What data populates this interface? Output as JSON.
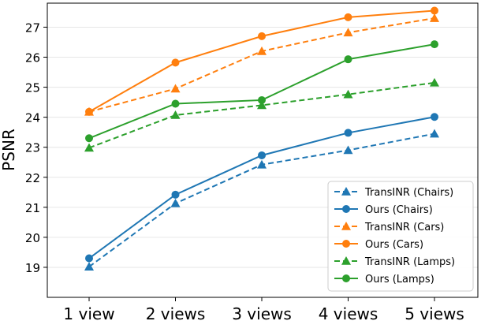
{
  "chart_data": {
    "type": "line",
    "ylabel": "PSNR",
    "xlabel": "",
    "categories": [
      "1 view",
      "2 views",
      "3 views",
      "4 views",
      "5 views"
    ],
    "ylim": [
      18.0,
      27.8
    ],
    "yticks": [
      19,
      20,
      21,
      22,
      23,
      24,
      25,
      26,
      27
    ],
    "grid": "horizontal",
    "legend": "bottom-right",
    "series": [
      {
        "name": "TransINR (Chairs)",
        "color": "#1f77b4",
        "dashed": true,
        "marker": "triangle",
        "values": [
          19.02,
          21.13,
          22.42,
          22.9,
          23.45
        ]
      },
      {
        "name": "Ours (Chairs)",
        "color": "#1f77b4",
        "dashed": false,
        "marker": "circle",
        "values": [
          19.3,
          21.42,
          22.73,
          23.48,
          24.01
        ]
      },
      {
        "name": "TransINR (Cars)",
        "color": "#ff7f0e",
        "dashed": true,
        "marker": "triangle",
        "values": [
          24.18,
          24.95,
          26.2,
          26.82,
          27.3
        ]
      },
      {
        "name": "Ours (Cars)",
        "color": "#ff7f0e",
        "dashed": false,
        "marker": "circle",
        "values": [
          24.18,
          25.82,
          26.7,
          27.33,
          27.55
        ]
      },
      {
        "name": "TransINR (Lamps)",
        "color": "#2ca02c",
        "dashed": true,
        "marker": "triangle",
        "values": [
          22.98,
          24.07,
          24.4,
          24.76,
          25.15
        ]
      },
      {
        "name": "Ours (Lamps)",
        "color": "#2ca02c",
        "dashed": false,
        "marker": "circle",
        "values": [
          23.3,
          24.45,
          24.57,
          25.93,
          26.43
        ]
      }
    ]
  }
}
